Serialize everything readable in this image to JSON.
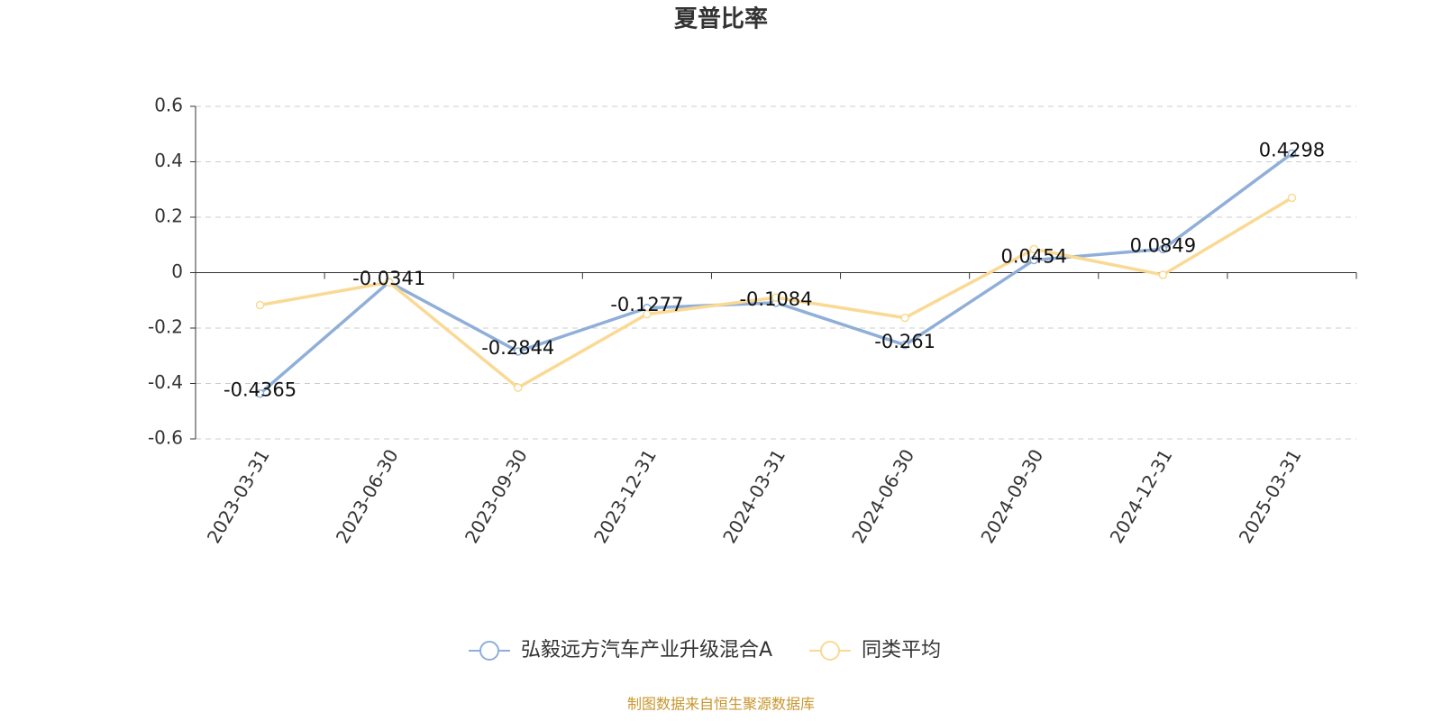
{
  "chart_data": {
    "type": "line",
    "title": "夏普比率",
    "categories": [
      "2023-03-31",
      "2023-06-30",
      "2023-09-30",
      "2023-12-31",
      "2024-03-31",
      "2024-06-30",
      "2024-09-30",
      "2024-12-31",
      "2025-03-31"
    ],
    "series": [
      {
        "name": "弘毅远方汽车产业升级混合A",
        "color": "#8fafd9",
        "data_labels": true,
        "values": [
          -0.4365,
          -0.0341,
          -0.2844,
          -0.1277,
          -0.1084,
          -0.261,
          0.0454,
          0.0849,
          0.4298
        ]
      },
      {
        "name": "同类平均",
        "color": "#fad994",
        "data_labels": false,
        "values": [
          -0.117,
          -0.035,
          -0.415,
          -0.15,
          -0.09,
          -0.163,
          0.085,
          -0.008,
          0.27
        ]
      }
    ],
    "ylim": [
      -0.6,
      0.6
    ],
    "yticks": [
      -0.6,
      -0.4,
      -0.2,
      0,
      0.2,
      0.4,
      0.6
    ],
    "grid": true,
    "source": "制图数据来自恒生聚源数据库"
  }
}
